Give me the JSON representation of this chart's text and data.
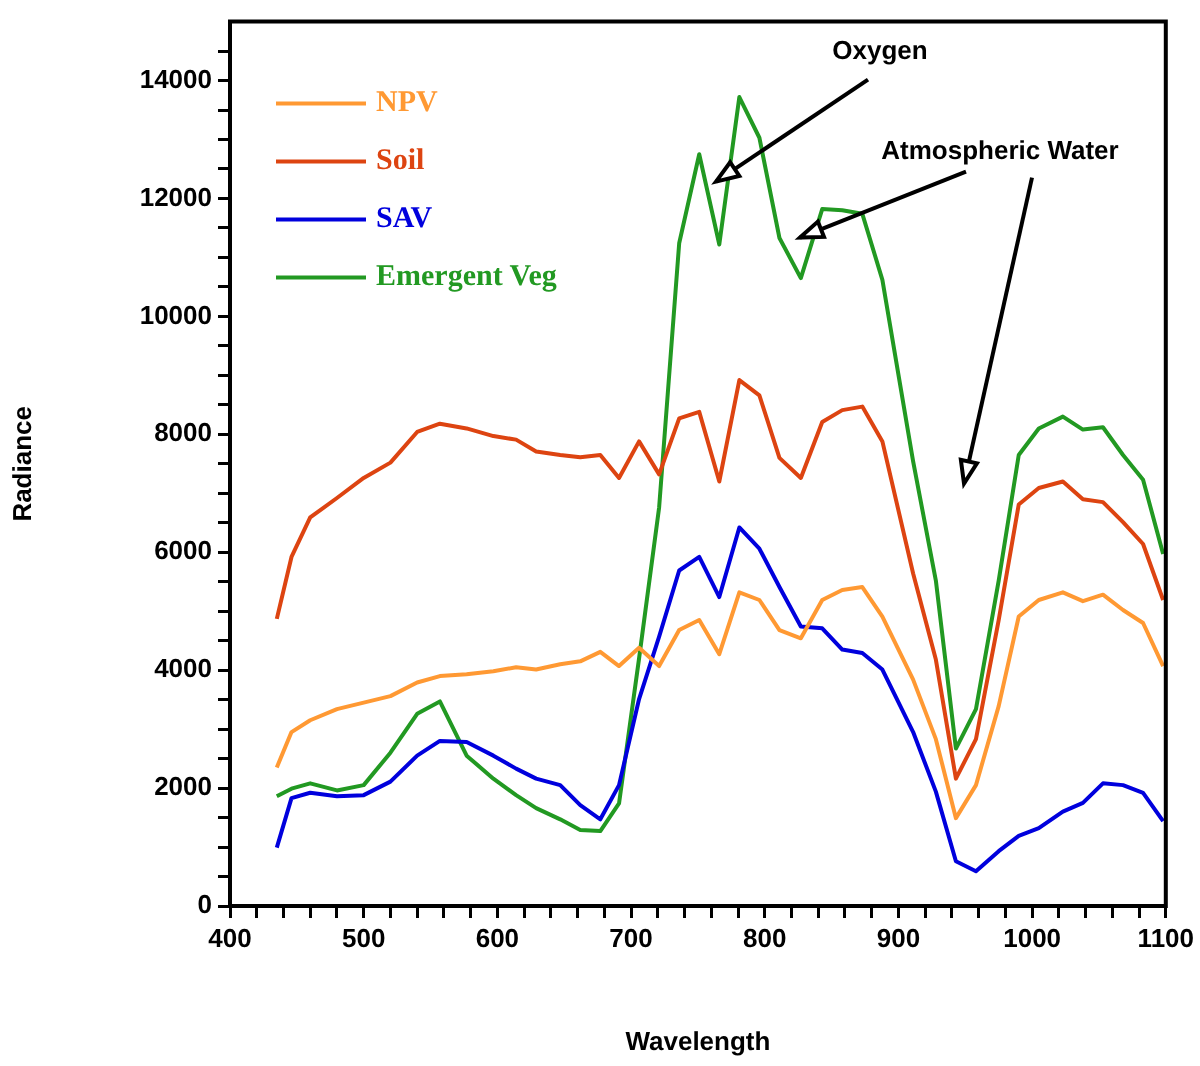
{
  "chart_data": {
    "type": "line",
    "xlabel": "Wavelength",
    "ylabel": "Radiance",
    "x": [
      435,
      446,
      460,
      480,
      500,
      520,
      540,
      557,
      577,
      597,
      614,
      629,
      647,
      662,
      677,
      691,
      706,
      721,
      736,
      751,
      766,
      781,
      796,
      811,
      827,
      843,
      858,
      873,
      888,
      911,
      928,
      943,
      958,
      975,
      990,
      1005,
      1023,
      1038,
      1053,
      1068,
      1083,
      1098
    ],
    "series": [
      {
        "name": "NPV",
        "color": "#ff9933",
        "values": [
          2350,
          2950,
          3150,
          3340,
          3450,
          3560,
          3790,
          3900,
          3930,
          3980,
          4050,
          4010,
          4100,
          4150,
          4310,
          4070,
          4380,
          4070,
          4680,
          4850,
          4270,
          5320,
          5190,
          4680,
          4540,
          5190,
          5360,
          5410,
          4910,
          3840,
          2830,
          1490,
          2050,
          3390,
          4910,
          5190,
          5320,
          5170,
          5280,
          5020,
          4800,
          4070
        ]
      },
      {
        "name": "Soil",
        "color": "#dd4411",
        "values": [
          4870,
          5920,
          6590,
          6920,
          7260,
          7520,
          8040,
          8180,
          8100,
          7970,
          7910,
          7710,
          7650,
          7610,
          7650,
          7260,
          7880,
          7320,
          8270,
          8380,
          7200,
          8920,
          8660,
          7600,
          7260,
          8210,
          8410,
          8470,
          7880,
          5640,
          4180,
          2160,
          2830,
          4850,
          6810,
          7090,
          7200,
          6900,
          6850,
          6510,
          6140,
          5190
        ]
      },
      {
        "name": "SAV",
        "color": "#0000dd",
        "values": [
          990,
          1830,
          1920,
          1860,
          1880,
          2110,
          2550,
          2800,
          2780,
          2550,
          2330,
          2160,
          2050,
          1710,
          1470,
          2050,
          3510,
          4570,
          5690,
          5920,
          5240,
          6420,
          6060,
          5410,
          4740,
          4710,
          4350,
          4290,
          4010,
          2950,
          1940,
          760,
          590,
          930,
          1190,
          1320,
          1600,
          1750,
          2080,
          2050,
          1920,
          1440
        ]
      },
      {
        "name": "Emergent Veg",
        "color": "#229922",
        "values": [
          1860,
          1990,
          2080,
          1960,
          2050,
          2600,
          3260,
          3470,
          2550,
          2160,
          1880,
          1660,
          1470,
          1290,
          1270,
          1740,
          4200,
          6760,
          11240,
          12750,
          11220,
          13720,
          13030,
          11330,
          10650,
          11820,
          11800,
          11740,
          10620,
          7540,
          5520,
          2670,
          3340,
          5520,
          7650,
          8100,
          8300,
          8080,
          8120,
          7650,
          7230,
          5970
        ]
      }
    ],
    "xlim": [
      400,
      1100
    ],
    "xticks": [
      400,
      {
        "value": 420,
        "label": null
      },
      {
        "value": 440,
        "label": null
      },
      {
        "value": 460,
        "label": null
      },
      {
        "value": 480,
        "label": null
      },
      500,
      {
        "value": 520,
        "label": null
      },
      {
        "value": 540,
        "label": null
      },
      {
        "value": 560,
        "label": null
      },
      {
        "value": 580,
        "label": null
      },
      600,
      {
        "value": 620,
        "label": null
      },
      {
        "value": 640,
        "label": null
      },
      {
        "value": 660,
        "label": null
      },
      {
        "value": 680,
        "label": null
      },
      700,
      {
        "value": 720,
        "label": null
      },
      {
        "value": 740,
        "label": null
      },
      {
        "value": 760,
        "label": null
      },
      {
        "value": 780,
        "label": null
      },
      800,
      {
        "value": 820,
        "label": null
      },
      {
        "value": 840,
        "label": null
      },
      {
        "value": 860,
        "label": null
      },
      {
        "value": 880,
        "label": null
      },
      900,
      {
        "value": 920,
        "label": null
      },
      {
        "value": 940,
        "label": null
      },
      {
        "value": 960,
        "label": null
      },
      {
        "value": 980,
        "label": null
      },
      1000,
      {
        "value": 1020,
        "label": null
      },
      {
        "value": 1040,
        "label": null
      },
      {
        "value": 1060,
        "label": null
      },
      {
        "value": 1080,
        "label": null
      },
      1100
    ],
    "ylim": [
      0,
      15000
    ],
    "yticks": [
      0,
      {
        "value": 500,
        "label": null
      },
      {
        "value": 1000,
        "label": null
      },
      {
        "value": 1500,
        "label": null
      },
      2000,
      {
        "value": 2500,
        "label": null
      },
      {
        "value": 3000,
        "label": null
      },
      {
        "value": 3500,
        "label": null
      },
      4000,
      {
        "value": 4500,
        "label": null
      },
      {
        "value": 5000,
        "label": null
      },
      {
        "value": 5500,
        "label": null
      },
      6000,
      {
        "value": 6500,
        "label": null
      },
      {
        "value": 7000,
        "label": null
      },
      {
        "value": 7500,
        "label": null
      },
      8000,
      {
        "value": 8500,
        "label": null
      },
      {
        "value": 9000,
        "label": null
      },
      {
        "value": 9500,
        "label": null
      },
      10000,
      {
        "value": 10500,
        "label": null
      },
      {
        "value": 11000,
        "label": null
      },
      {
        "value": 11500,
        "label": null
      },
      12000,
      {
        "value": 12500,
        "label": null
      },
      {
        "value": 13000,
        "label": null
      },
      {
        "value": 13500,
        "label": null
      },
      14000,
      {
        "value": 14500,
        "label": null
      }
    ],
    "grid": false,
    "legend": "top left",
    "marker": "none",
    "line_style": "solid",
    "annotations": [
      "Oxygen",
      "Atmospheric Water"
    ]
  }
}
